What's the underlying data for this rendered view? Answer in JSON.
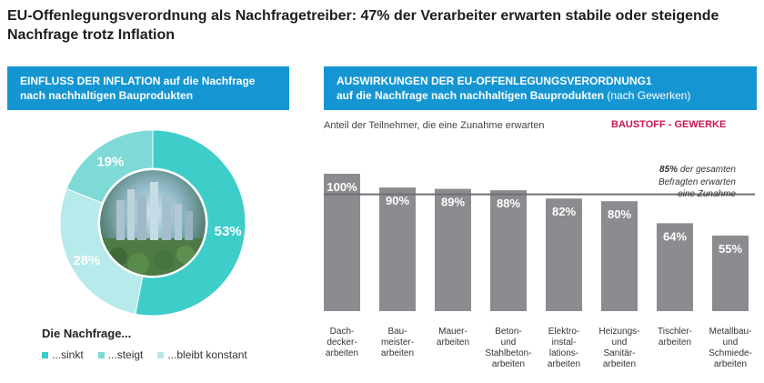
{
  "title": "EU-Offenlegungsverordnung als Nachfragetreiber: 47% der Verarbeiter erwarten stabile oder steigende Nachfrage trotz Inflation",
  "left_panel": {
    "heading_line1": "EINFLUSS DER INFLATION auf die Nachfrage",
    "heading_line2": "nach nachhaltigen Bauprodukten",
    "legend_title": "Die Nachfrage...",
    "legend": [
      {
        "label": "...sinkt",
        "color": "#3ecdc9"
      },
      {
        "label": "...steigt",
        "color": "#7edad6"
      },
      {
        "label": "...bleibt konstant",
        "color": "#b7eaea"
      }
    ]
  },
  "right_panel": {
    "heading_line1": "AUSWIRKUNGEN DER EU-OFFENLEGUNGSVERORDNUNG1",
    "heading_line2_bold": "auf die Nachfrage nach nachhaltigen Bauprodukten",
    "heading_line2_light": " (nach Gewerken)",
    "subtitle": "Anteil der Teilnehmer, die eine Zunahme erwarten",
    "tag": "BAUSTOFF - GEWERKE"
  },
  "chart_data": [
    {
      "type": "pie",
      "title": "EINFLUSS DER INFLATION auf die Nachfrage nach nachhaltigen Bauprodukten",
      "categories": [
        "...sinkt",
        "...bleibt konstant",
        "...steigt"
      ],
      "values": [
        53,
        28,
        19
      ],
      "unit": "%",
      "colors": [
        "#3ecdc9",
        "#b7eaea",
        "#7edad6"
      ]
    },
    {
      "type": "bar",
      "title": "AUSWIRKUNGEN DER EU-OFFENLEGUNGSVERORDNUNG1 auf die Nachfrage nach nachhaltigen Bauprodukten (nach Gewerken)",
      "ylabel": "Anteil der Teilnehmer, die eine Zunahme erwarten",
      "categories": [
        [
          "Dach-",
          "decker-",
          "arbeiten"
        ],
        [
          "Bau-",
          "meister-",
          "arbeiten"
        ],
        [
          "Mauer-",
          "arbeiten"
        ],
        [
          "Beton-",
          "und",
          "Stahlbeton-",
          "arbeiten"
        ],
        [
          "Elektro-",
          "instal-",
          "lations-",
          "arbeiten"
        ],
        [
          "Heizungs-",
          "und",
          "Sanitär-",
          "arbeiten"
        ],
        [
          "Tischler-",
          "arbeiten"
        ],
        [
          "Metallbau-",
          "und",
          "Schmiede-",
          "arbeiten"
        ]
      ],
      "values": [
        100,
        90,
        89,
        88,
        82,
        80,
        64,
        55
      ],
      "unit": "%",
      "ylim": [
        0,
        100
      ],
      "color": "#8a8c8f",
      "reference_line": {
        "value": 85,
        "label_bold": "85%",
        "label_rest": " der gesamten",
        "label_line2": "Befragten erwarten",
        "label_line3": "eine Zunahme"
      }
    }
  ]
}
